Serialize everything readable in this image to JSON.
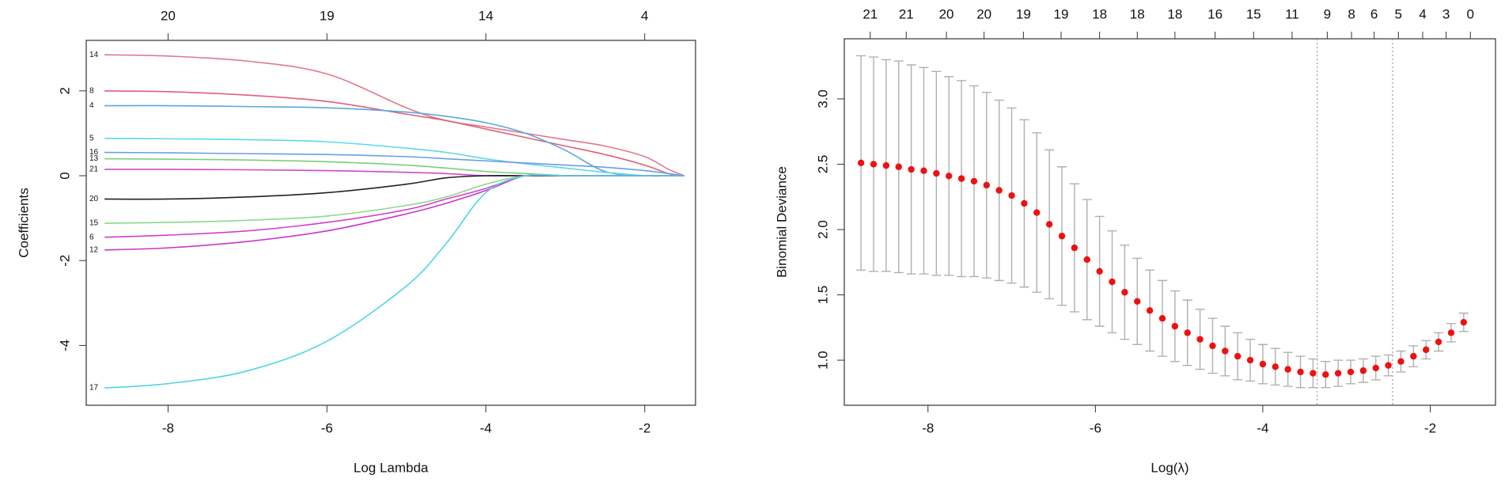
{
  "chart_data": [
    {
      "type": "line",
      "xlabel": "Log Lambda",
      "ylabel": "Coefficients",
      "xlim": [
        -9.03,
        -1.36
      ],
      "ylim": [
        -5.41,
        3.19
      ],
      "xticks": [
        -8,
        -6,
        -4,
        -2
      ],
      "yticks": [
        -4,
        -2,
        0,
        2
      ],
      "x2ticks": [
        {
          "value": -8,
          "label": "20"
        },
        {
          "value": -6,
          "label": "19"
        },
        {
          "value": -4,
          "label": "14"
        },
        {
          "value": -2,
          "label": "4"
        }
      ],
      "x": [
        -8.8,
        -8,
        -7,
        -6,
        -5,
        -4.5,
        -4,
        -3.5,
        -3,
        -2.5,
        -2,
        -1.7,
        -1.5
      ],
      "series": [
        {
          "name": "14",
          "color": "#e07a8a",
          "values": [
            2.85,
            2.82,
            2.7,
            2.4,
            1.6,
            1.3,
            1.15,
            1.0,
            0.85,
            0.7,
            0.45,
            0.15,
            0
          ]
        },
        {
          "name": "8",
          "color": "#e0607a",
          "values": [
            2.0,
            1.98,
            1.9,
            1.75,
            1.45,
            1.3,
            1.1,
            0.9,
            0.7,
            0.5,
            0.25,
            0.05,
            0
          ]
        },
        {
          "name": "4",
          "color": "#5aa8e0",
          "values": [
            1.65,
            1.65,
            1.63,
            1.6,
            1.5,
            1.4,
            1.25,
            1.0,
            0.6,
            0.1,
            0,
            0,
            0
          ]
        },
        {
          "name": "5",
          "color": "#5fd8e6",
          "values": [
            0.88,
            0.87,
            0.85,
            0.8,
            0.65,
            0.55,
            0.4,
            0.28,
            0.18,
            0.08,
            0,
            0,
            0
          ]
        },
        {
          "name": "16",
          "color": "#6a9ee8",
          "values": [
            0.55,
            0.54,
            0.52,
            0.5,
            0.45,
            0.4,
            0.35,
            0.3,
            0.25,
            0.2,
            0.12,
            0.05,
            0
          ]
        },
        {
          "name": "13",
          "color": "#7ccf7c",
          "values": [
            0.4,
            0.39,
            0.37,
            0.33,
            0.25,
            0.18,
            0.1,
            0.05,
            0,
            0,
            0,
            0,
            0
          ]
        },
        {
          "name": "21",
          "color": "#d048d0",
          "values": [
            0.15,
            0.15,
            0.14,
            0.12,
            0.08,
            0.05,
            0,
            0,
            0,
            0,
            0,
            0,
            0
          ]
        },
        {
          "name": "20",
          "color": "#222222",
          "values": [
            -0.55,
            -0.55,
            -0.5,
            -0.4,
            -0.2,
            -0.05,
            0,
            0,
            0,
            0,
            0,
            0,
            0
          ]
        },
        {
          "name": "15",
          "color": "#8ad88a",
          "values": [
            -1.12,
            -1.1,
            -1.05,
            -0.95,
            -0.7,
            -0.5,
            -0.2,
            0,
            0,
            0,
            0,
            0,
            0
          ]
        },
        {
          "name": "6",
          "color": "#d040d0",
          "values": [
            -1.45,
            -1.4,
            -1.3,
            -1.1,
            -0.8,
            -0.55,
            -0.3,
            0,
            0,
            0,
            0,
            0,
            0
          ]
        },
        {
          "name": "12",
          "color": "#c838c8",
          "values": [
            -1.75,
            -1.7,
            -1.55,
            -1.3,
            -0.9,
            -0.65,
            -0.35,
            0,
            0,
            0,
            0,
            0,
            0
          ]
        },
        {
          "name": "17",
          "color": "#50d6e0",
          "values": [
            -5.0,
            -4.9,
            -4.6,
            -3.9,
            -2.6,
            -1.6,
            -0.4,
            0,
            0,
            0,
            0,
            0,
            0
          ]
        }
      ]
    },
    {
      "type": "errorbar",
      "xlabel": "Log(λ)",
      "ylabel": "Binomial Deviance",
      "xlim": [
        -9.0,
        -1.22
      ],
      "ylim": [
        0.655,
        3.46
      ],
      "xticks": [
        -8,
        -6,
        -4,
        -2
      ],
      "yticks": [
        1.0,
        1.5,
        2.0,
        2.5,
        3.0
      ],
      "ytick_labels": [
        "1.0",
        "1.5",
        "2.0",
        "2.5",
        "3.0"
      ],
      "x2ticks": [
        {
          "value": -8.69,
          "label": "21"
        },
        {
          "value": -8.26,
          "label": "21"
        },
        {
          "value": -7.78,
          "label": "20"
        },
        {
          "value": -7.33,
          "label": "20"
        },
        {
          "value": -6.86,
          "label": "19"
        },
        {
          "value": -6.41,
          "label": "19"
        },
        {
          "value": -5.95,
          "label": "18"
        },
        {
          "value": -5.5,
          "label": "18"
        },
        {
          "value": -5.05,
          "label": "18"
        },
        {
          "value": -4.57,
          "label": "16"
        },
        {
          "value": -4.11,
          "label": "15"
        },
        {
          "value": -3.65,
          "label": "11"
        },
        {
          "value": -3.23,
          "label": "9"
        },
        {
          "value": -2.94,
          "label": "8"
        },
        {
          "value": -2.67,
          "label": "6"
        },
        {
          "value": -2.38,
          "label": "5"
        },
        {
          "value": -2.09,
          "label": "4"
        },
        {
          "value": -1.81,
          "label": "3"
        },
        {
          "value": -1.52,
          "label": "0"
        }
      ],
      "vlines": [
        -3.35,
        -2.45
      ],
      "x": [
        -8.8,
        -8.65,
        -8.5,
        -8.35,
        -8.2,
        -8.05,
        -7.9,
        -7.75,
        -7.6,
        -7.45,
        -7.3,
        -7.15,
        -7.0,
        -6.85,
        -6.7,
        -6.55,
        -6.4,
        -6.25,
        -6.1,
        -5.95,
        -5.8,
        -5.65,
        -5.5,
        -5.35,
        -5.2,
        -5.05,
        -4.9,
        -4.75,
        -4.6,
        -4.45,
        -4.3,
        -4.15,
        -4.0,
        -3.85,
        -3.7,
        -3.55,
        -3.4,
        -3.25,
        -3.1,
        -2.95,
        -2.8,
        -2.65,
        -2.5,
        -2.35,
        -2.2,
        -2.05,
        -1.9,
        -1.75,
        -1.6
      ],
      "series": [
        {
          "color": "#ee1111",
          "error_color": "#b0b0b0",
          "values": [
            2.51,
            2.5,
            2.49,
            2.48,
            2.46,
            2.45,
            2.43,
            2.41,
            2.39,
            2.37,
            2.34,
            2.3,
            2.26,
            2.2,
            2.13,
            2.04,
            1.95,
            1.86,
            1.77,
            1.68,
            1.6,
            1.52,
            1.45,
            1.38,
            1.32,
            1.26,
            1.21,
            1.16,
            1.11,
            1.07,
            1.03,
            1.0,
            0.97,
            0.95,
            0.93,
            0.91,
            0.9,
            0.89,
            0.9,
            0.91,
            0.92,
            0.94,
            0.96,
            0.99,
            1.03,
            1.08,
            1.14,
            1.21,
            1.29
          ],
          "errors": [
            0.82,
            0.82,
            0.81,
            0.81,
            0.8,
            0.79,
            0.78,
            0.76,
            0.75,
            0.73,
            0.71,
            0.69,
            0.67,
            0.64,
            0.61,
            0.57,
            0.53,
            0.49,
            0.46,
            0.42,
            0.39,
            0.36,
            0.33,
            0.31,
            0.29,
            0.27,
            0.25,
            0.23,
            0.21,
            0.19,
            0.18,
            0.16,
            0.15,
            0.14,
            0.13,
            0.12,
            0.11,
            0.1,
            0.1,
            0.09,
            0.09,
            0.09,
            0.08,
            0.08,
            0.08,
            0.07,
            0.07,
            0.07,
            0.07
          ]
        }
      ]
    }
  ]
}
